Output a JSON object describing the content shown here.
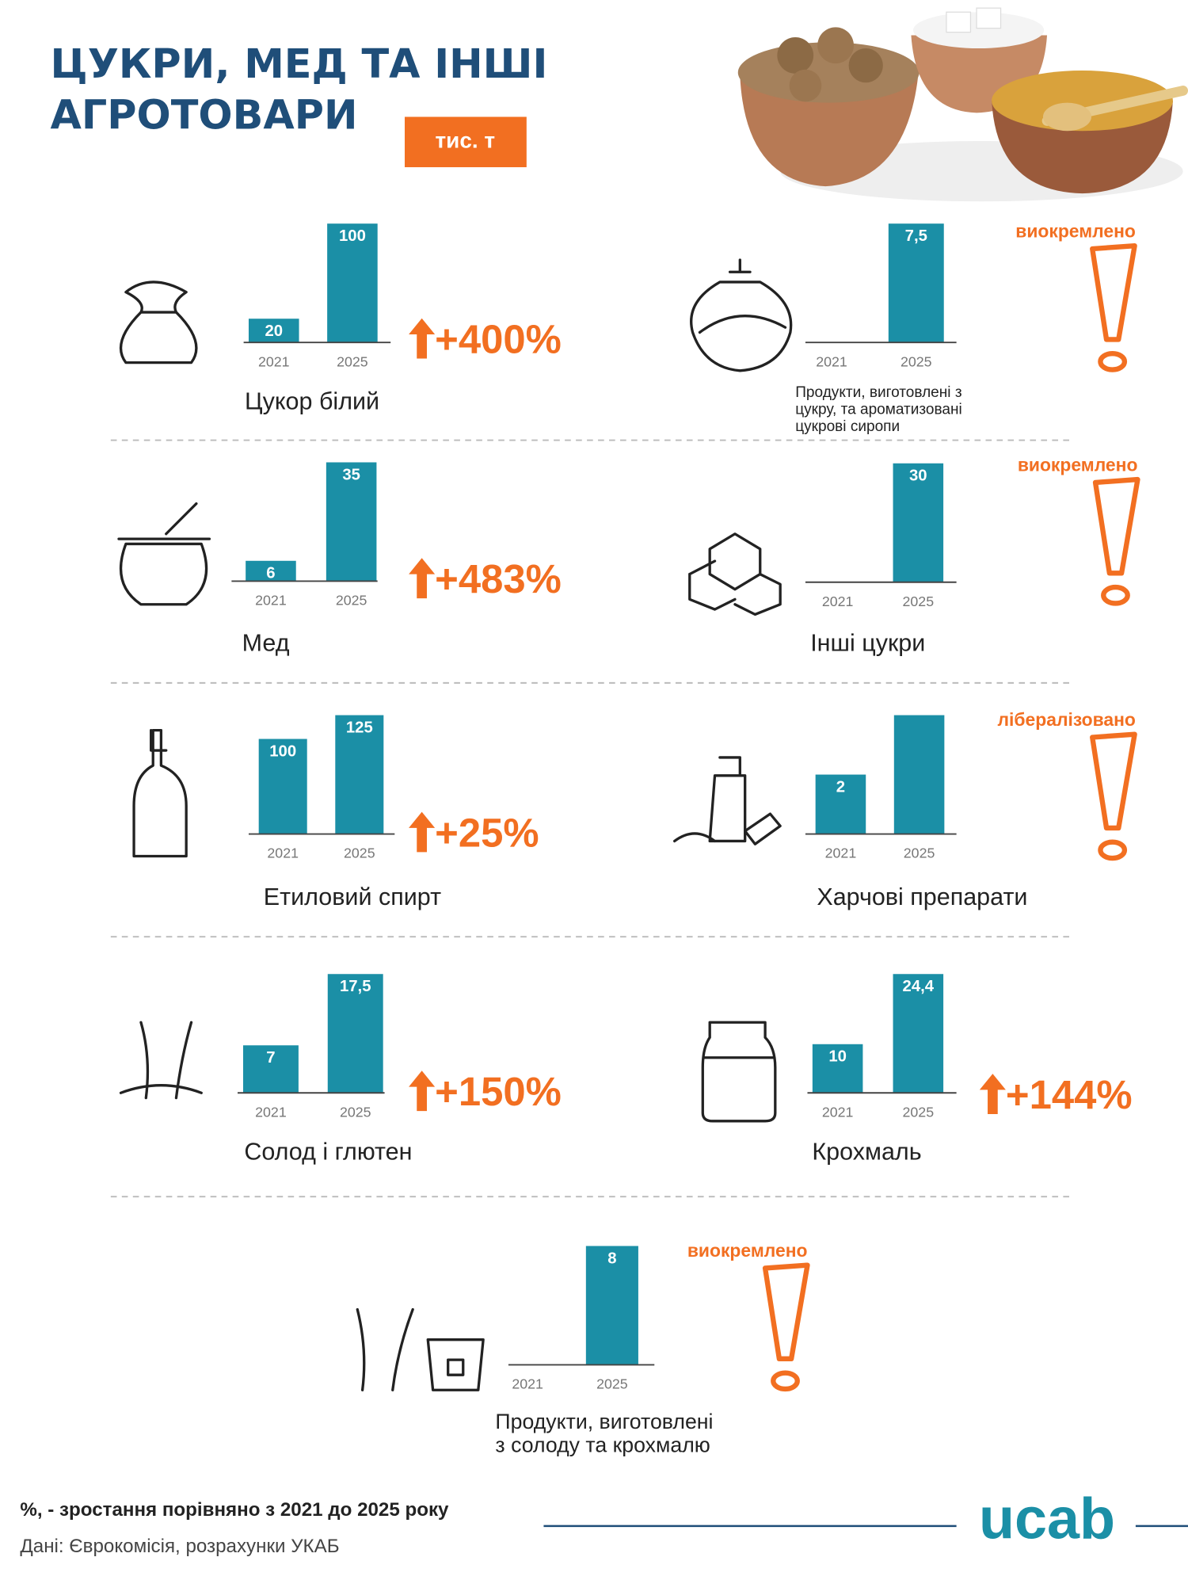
{
  "header": {
    "title": [
      "ЦУКРИ, МЕД ТА ІНШІ",
      "АГРОТОВАРИ"
    ],
    "unit": "тис. т"
  },
  "chart_data": [
    {
      "type": "bar",
      "name": [
        "Цукор білий"
      ],
      "categories": [
        "2021",
        "2025"
      ],
      "values": [
        20,
        100
      ],
      "color": "#1b8fa6",
      "change": "+400%"
    },
    {
      "type": "bar",
      "name": [
        "Продукти, виготовлені з",
        "цукру, та ароматизовані",
        "цукрові сиропи"
      ],
      "categories": [
        "2021",
        "2025"
      ],
      "values": [
        null,
        7.5
      ],
      "value_labels": [
        null,
        "7,5"
      ],
      "color": "#1b8fa6",
      "status": "виокремлено"
    },
    {
      "type": "bar",
      "name": [
        "Мед"
      ],
      "categories": [
        "2021",
        "2025"
      ],
      "values": [
        6,
        35
      ],
      "color": "#1b8fa6",
      "change": "+483%"
    },
    {
      "type": "bar",
      "name": [
        "Інші цукри"
      ],
      "categories": [
        "2021",
        "2025"
      ],
      "values": [
        null,
        30
      ],
      "color": "#1b8fa6",
      "status": "виокремлено"
    },
    {
      "type": "bar",
      "name": [
        "Етиловий спирт"
      ],
      "categories": [
        "2021",
        "2025"
      ],
      "values": [
        100,
        125
      ],
      "color": "#1b8fa6",
      "change": "+25%"
    },
    {
      "type": "bar",
      "name": [
        "Харчові препарати"
      ],
      "categories": [
        "2021",
        "2025"
      ],
      "values": [
        2,
        4
      ],
      "value_labels": [
        "2",
        null
      ],
      "color": "#1b8fa6",
      "status": "лібералізовано"
    },
    {
      "type": "bar",
      "name": [
        "Солод і глютен"
      ],
      "categories": [
        "2021",
        "2025"
      ],
      "values": [
        7,
        17.5
      ],
      "value_labels": [
        "7",
        "17,5"
      ],
      "color": "#1b8fa6",
      "change": "+150%"
    },
    {
      "type": "bar",
      "name": [
        "Крохмаль"
      ],
      "categories": [
        "2021",
        "2025"
      ],
      "values": [
        10,
        24.4
      ],
      "value_labels": [
        "10",
        "24,4"
      ],
      "color": "#1b8fa6",
      "change": "+144%"
    },
    {
      "type": "bar",
      "name": [
        "Продукти, виготовлені",
        "з солоду та крохмалю"
      ],
      "categories": [
        "2021",
        "2025"
      ],
      "values": [
        null,
        8
      ],
      "color": "#1b8fa6",
      "status": "виокремлено"
    }
  ],
  "footer": {
    "note": "%, - зростання порівняно з 2021 до 2025 року",
    "source": "Дані: Єврокомісія, розрахунки УКАБ",
    "logo": "ucab"
  }
}
